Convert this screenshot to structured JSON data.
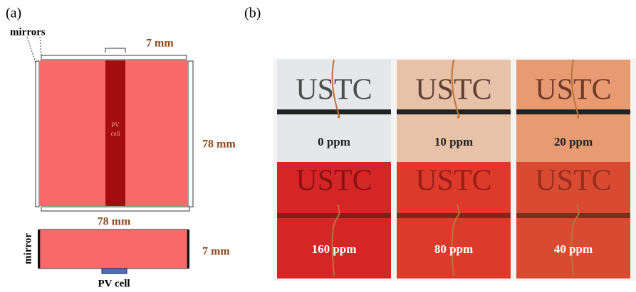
{
  "panel_a": {
    "tag": "(a)",
    "mirrors_label": "mirrors",
    "strip_width": "7 mm",
    "strip_label_1": "PV",
    "strip_label_2": "cell",
    "height_label": "78 mm",
    "width_label": "78 mm",
    "side_mirror_label": "mirror",
    "thickness_label": "7 mm",
    "cell_label": "PV cell"
  },
  "panel_b": {
    "tag": "(b)",
    "samples": [
      {
        "text": "USTC",
        "label": "0 ppm"
      },
      {
        "text": "USTC",
        "label": "10 ppm"
      },
      {
        "text": "USTC",
        "label": "20 ppm"
      },
      {
        "text": "USTC",
        "label": "160 ppm"
      },
      {
        "text": "USTC",
        "label": "80 ppm"
      },
      {
        "text": "USTC",
        "label": "40 ppm"
      }
    ]
  }
}
